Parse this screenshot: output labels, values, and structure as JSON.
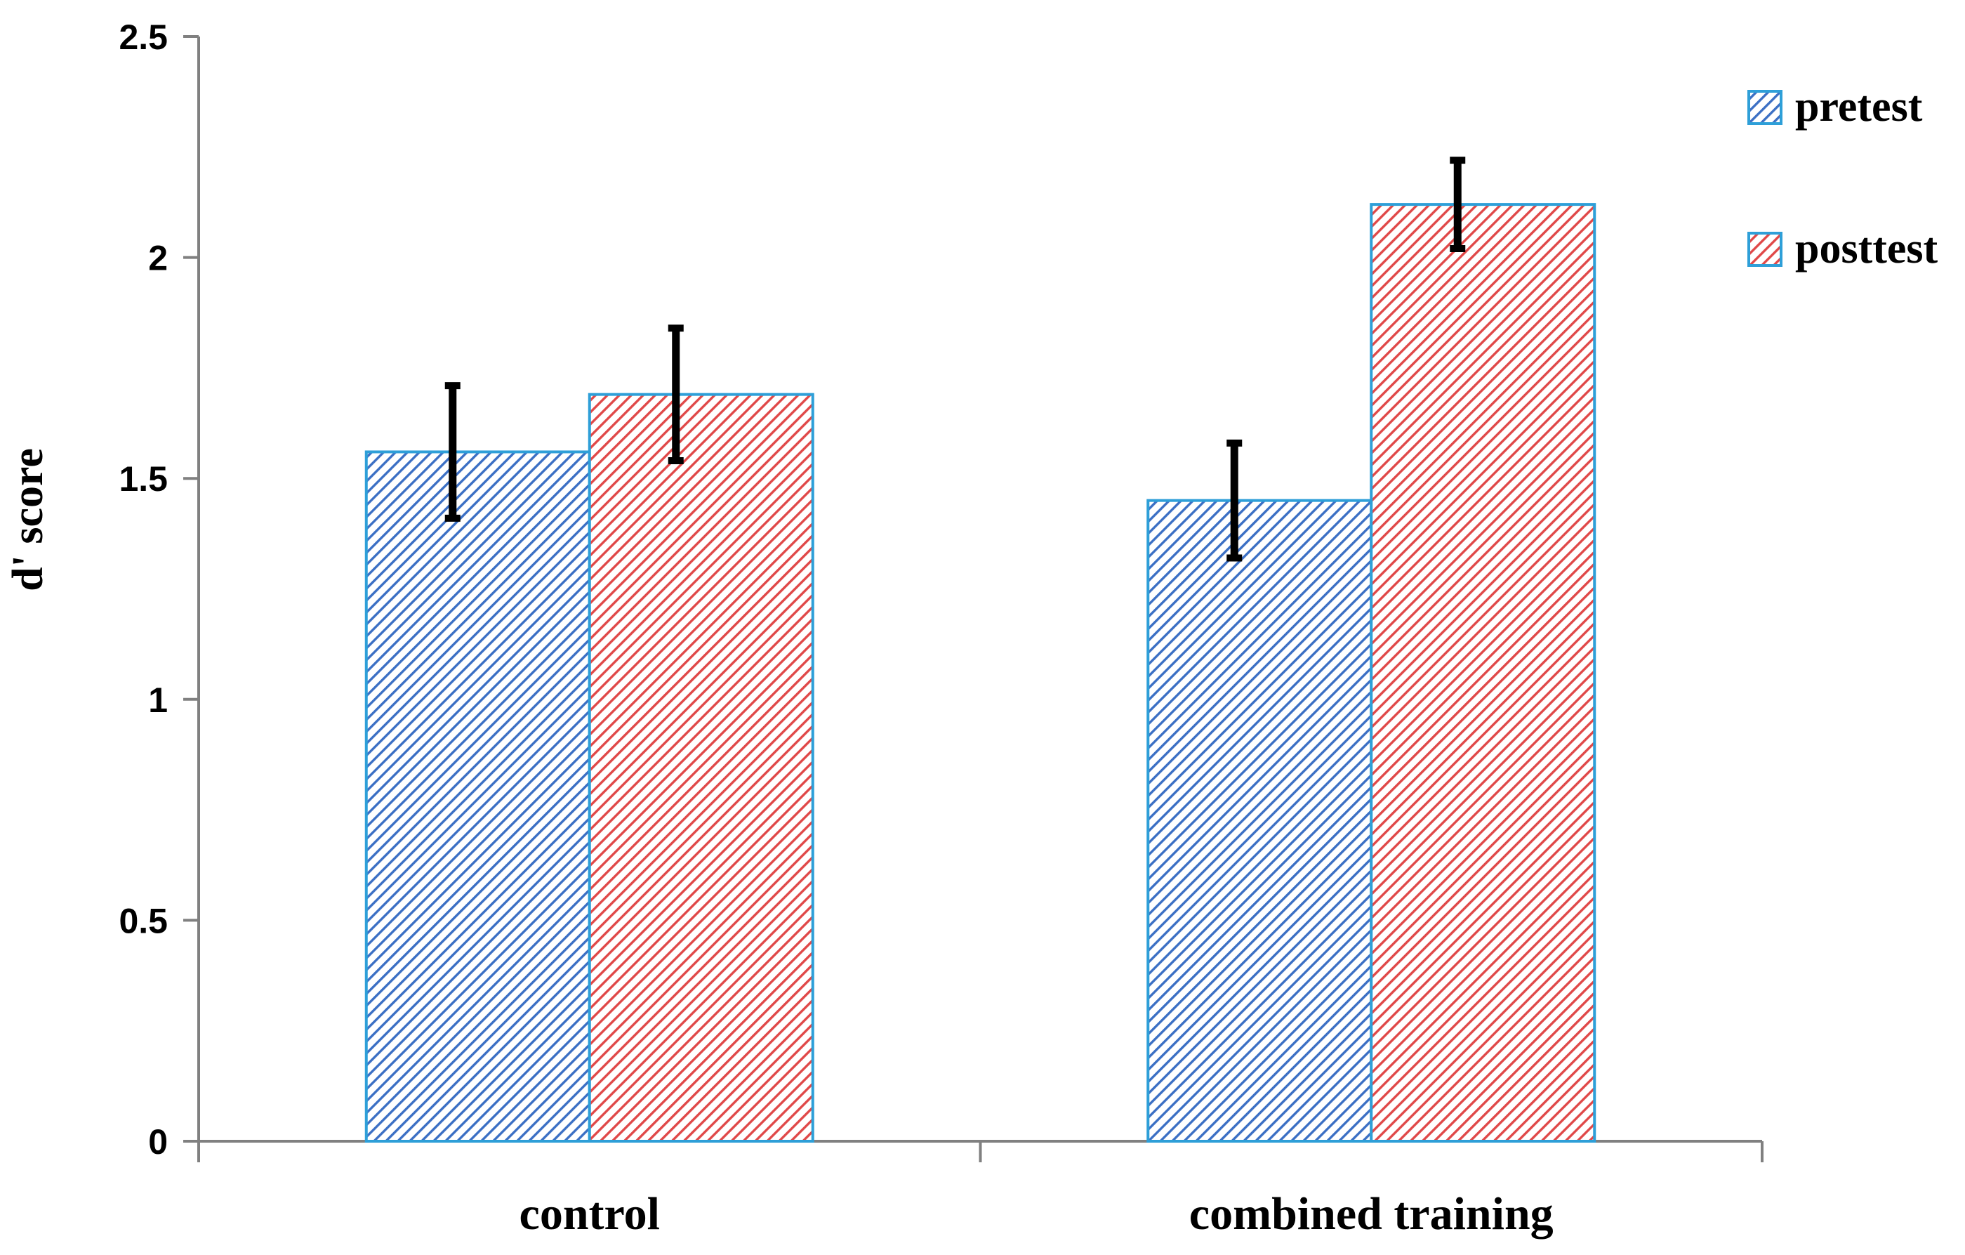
{
  "chart_data": {
    "type": "bar",
    "title": "",
    "xlabel": "",
    "ylabel": "d' score",
    "ylim": [
      0,
      2.5
    ],
    "yticks": [
      "0",
      "0.5",
      "1",
      "1.5",
      "2",
      "2.5"
    ],
    "categories": [
      "control",
      "combined training"
    ],
    "legend_position": "top-right",
    "series": [
      {
        "name": "pretest",
        "values": [
          1.56,
          1.45
        ],
        "errors": [
          0.15,
          0.13
        ],
        "fill_color": "#3b6fc4",
        "edge_color": "#2e9fd8"
      },
      {
        "name": "posttest",
        "values": [
          1.69,
          2.12
        ],
        "errors": [
          0.15,
          0.1
        ],
        "fill_color": "#e04848",
        "edge_color": "#2e9fd8"
      }
    ],
    "error_bar_color": "#000000",
    "axis_color": "#808080"
  }
}
